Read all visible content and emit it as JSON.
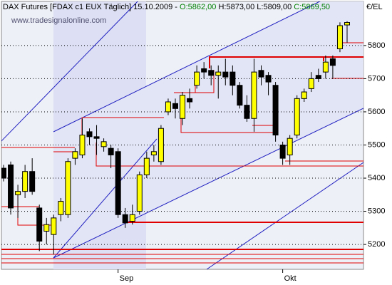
{
  "chart_data": {
    "type": "candlestick",
    "title_parts": [
      {
        "text": "DAX Futures [FDAX c1 EUX  Täglich] 15.10.2009 - ",
        "color": "#000000"
      },
      {
        "text": "O:5862,00",
        "color": "#008000"
      },
      {
        "text": " H:5873,00",
        "color": "#000000"
      },
      {
        "text": " L:5809,00",
        "color": "#000000"
      },
      {
        "text": " C:5869,50",
        "color": "#008000"
      }
    ],
    "watermark": "www.tradesignalonline.com",
    "y_axis_label": "€/EL",
    "categories": [
      null,
      null,
      null,
      null,
      null,
      null,
      null,
      null,
      null,
      null,
      null,
      null,
      null,
      null,
      null,
      null,
      "Sep",
      null,
      null,
      null,
      null,
      null,
      null,
      null,
      null,
      null,
      null,
      null,
      null,
      null,
      null,
      null,
      null,
      null,
      null,
      null,
      null,
      null,
      null,
      "Okt",
      null,
      null,
      null,
      null,
      null,
      null,
      null,
      null,
      null
    ],
    "open": [
      5430,
      5440,
      5350,
      5360,
      5420,
      5310,
      5240,
      5230,
      5290,
      5290,
      5460,
      5470,
      5540,
      5525,
      5495,
      5490,
      5480,
      5290,
      5270,
      5300,
      5410,
      5470,
      5450,
      5600,
      5625,
      5580,
      5640,
      5680,
      5730,
      5725,
      5710,
      5720,
      5720,
      5680,
      5620,
      5580,
      5725,
      5710,
      5680,
      5500,
      5470,
      5530,
      5640,
      5670,
      5710,
      5720,
      5760,
      5790,
      5862
    ],
    "high": [
      5440,
      5450,
      5380,
      5440,
      5460,
      5320,
      5280,
      5290,
      5340,
      5460,
      5490,
      5580,
      5550,
      5560,
      5520,
      5500,
      5490,
      5310,
      5320,
      5420,
      5480,
      5500,
      5560,
      5640,
      5640,
      5660,
      5670,
      5740,
      5750,
      5740,
      5740,
      5760,
      5740,
      5690,
      5650,
      5760,
      5740,
      5720,
      5690,
      5510,
      5530,
      5650,
      5670,
      5720,
      5730,
      5770,
      5770,
      5870,
      5873
    ],
    "low": [
      5390,
      5290,
      5280,
      5340,
      5350,
      5180,
      5200,
      5170,
      5270,
      5280,
      5440,
      5460,
      5500,
      5470,
      5480,
      5430,
      5280,
      5250,
      5260,
      5290,
      5400,
      5450,
      5440,
      5590,
      5580,
      5560,
      5610,
      5670,
      5700,
      5680,
      5640,
      5680,
      5650,
      5610,
      5570,
      5540,
      5680,
      5650,
      5510,
      5440,
      5440,
      5520,
      5630,
      5660,
      5690,
      5700,
      5700,
      5780,
      5809
    ],
    "close": [
      5400,
      5310,
      5360,
      5420,
      5360,
      5210,
      5260,
      5280,
      5330,
      5450,
      5480,
      5530,
      5525,
      5520,
      5510,
      5470,
      5290,
      5265,
      5290,
      5410,
      5460,
      5480,
      5550,
      5630,
      5610,
      5650,
      5630,
      5720,
      5720,
      5710,
      5720,
      5705,
      5680,
      5620,
      5580,
      5720,
      5705,
      5690,
      5530,
      5460,
      5520,
      5640,
      5660,
      5700,
      5700,
      5750,
      5740,
      5860,
      5869.5
    ],
    "up_color": "#ffff00",
    "down_color": "#000000",
    "ylim": [
      5125,
      5933
    ],
    "yticks": [
      5200,
      5300,
      5400,
      5500,
      5600,
      5700,
      5800
    ],
    "grid": true
  }
}
